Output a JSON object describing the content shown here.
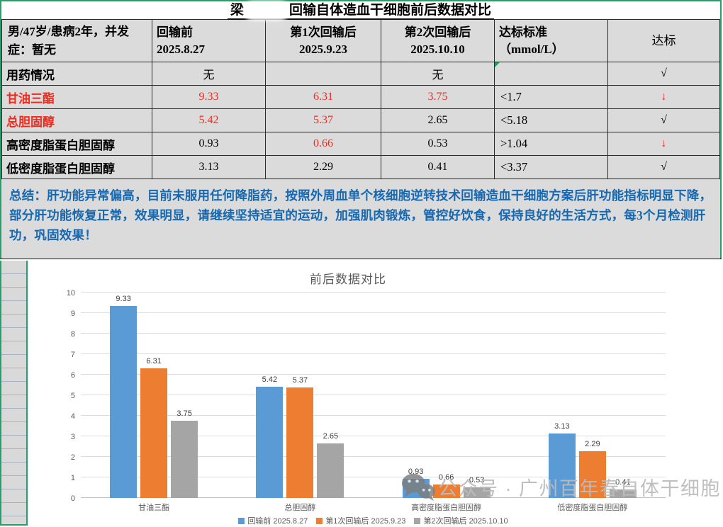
{
  "title": {
    "prefix": "梁",
    "suffix": "回输自体造血干细胞前后数据对比"
  },
  "table": {
    "header": {
      "patient": "男/47岁/患病2年，并发症：暂无",
      "columns": [
        {
          "line1": "回输前",
          "line2": "2025.8.27"
        },
        {
          "line1": "第1次回输后",
          "line2": "2025.9.23"
        },
        {
          "line1": "第2次回输后",
          "line2": "2025.10.10"
        },
        {
          "line1": "达标标准",
          "line2": "（mmol/L）"
        },
        {
          "line1": "达标",
          "line2": ""
        }
      ]
    },
    "rows": [
      {
        "label": "用药情况",
        "labelRed": false,
        "values": [
          {
            "t": "无",
            "red": false
          },
          {
            "t": "",
            "red": false
          },
          {
            "t": "无",
            "red": false
          },
          {
            "t": "",
            "red": false,
            "marker": true
          }
        ],
        "status": "√",
        "statusRed": false
      },
      {
        "label": "甘油三酯",
        "labelRed": true,
        "values": [
          {
            "t": "9.33",
            "red": true
          },
          {
            "t": "6.31",
            "red": true
          },
          {
            "t": "3.75",
            "red": true
          },
          {
            "t": "<1.7",
            "red": false
          }
        ],
        "status": "↓",
        "statusRed": true
      },
      {
        "label": "总胆固醇",
        "labelRed": true,
        "values": [
          {
            "t": "5.42",
            "red": true
          },
          {
            "t": "5.37",
            "red": true
          },
          {
            "t": "2.65",
            "red": false
          },
          {
            "t": "<5.18",
            "red": false
          }
        ],
        "status": "√",
        "statusRed": false
      },
      {
        "label": "高密度脂蛋白胆固醇",
        "labelRed": false,
        "values": [
          {
            "t": "0.93",
            "red": false
          },
          {
            "t": "0.66",
            "red": true
          },
          {
            "t": "0.53",
            "red": false
          },
          {
            "t": ">1.04",
            "red": false
          }
        ],
        "status": "↓",
        "statusRed": true
      },
      {
        "label": "低密度脂蛋白胆固醇",
        "labelRed": false,
        "values": [
          {
            "t": "3.13",
            "red": false
          },
          {
            "t": "2.29",
            "red": false
          },
          {
            "t": "0.41",
            "red": false
          },
          {
            "t": "<3.37",
            "red": false
          }
        ],
        "status": "√",
        "statusRed": false
      }
    ]
  },
  "summary": "总结：肝功能异常偏高，目前未服用任何降脂药，按照外周血单个核细胞逆转技术回输造血干细胞方案后肝功能指标明显下降，部分肝功能恢复正常，效果明显，请继续坚持适宜的运动，加强肌肉锻炼，管控好饮食，保持良好的生活方式，每3个月检测肝功，巩固效果！",
  "chart_data": {
    "type": "bar",
    "title": "前后数据对比",
    "categories": [
      "甘油三酯",
      "总胆固醇",
      "高密度脂蛋白胆固醇",
      "低密度脂蛋白胆固醇"
    ],
    "series": [
      {
        "name": "回输前 2025.8.27",
        "color": "#5B9BD5",
        "values": [
          9.33,
          5.42,
          0.93,
          3.13
        ]
      },
      {
        "name": "第1次回输后 2025.9.23",
        "color": "#ED7D31",
        "values": [
          6.31,
          5.37,
          0.66,
          2.29
        ]
      },
      {
        "name": "第2次回输后 2025.10.10",
        "color": "#A5A5A5",
        "values": [
          3.75,
          2.65,
          0.53,
          0.41
        ]
      }
    ],
    "xlabel": "",
    "ylabel": "",
    "ylim": [
      0,
      10
    ],
    "ytick_step": 1,
    "grid": true,
    "legend_position": "bottom"
  },
  "watermark": {
    "icon": "wechat-icon",
    "text": "公众号 · 广州百年春自体干细胞"
  },
  "colors": {
    "selection_green": "#23a06c",
    "cell_gray": "#dbdbdb",
    "alert_red": "#ee2a1c",
    "summary_blue": "#1668b1",
    "bar_blue": "#5B9BD5",
    "bar_orange": "#ED7D31",
    "bar_gray": "#A5A5A5"
  }
}
